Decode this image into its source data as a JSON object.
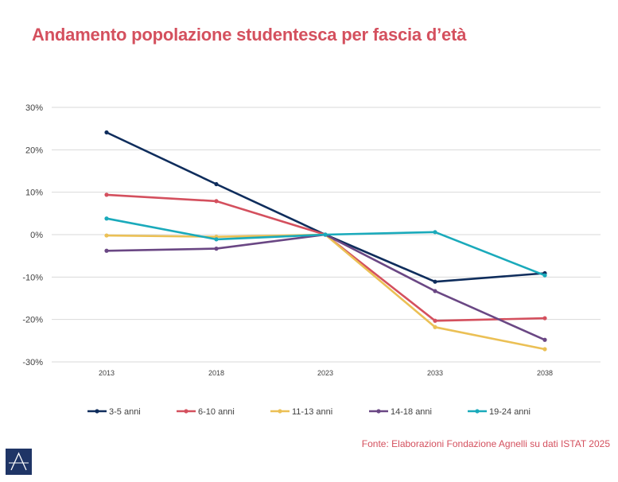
{
  "chart_data": {
    "type": "line",
    "title": "Andamento popolazione studentesca per fascia d’età",
    "categories": [
      "2013",
      "2018",
      "2023",
      "2033",
      "2038"
    ],
    "ylim": [
      -30,
      30
    ],
    "yticks": [
      30,
      20,
      10,
      0,
      -10,
      -20,
      -30
    ],
    "ytick_labels": [
      "30%",
      "20%",
      "10%",
      "0%",
      "-10%",
      "-20%",
      "-30%"
    ],
    "grid": true,
    "legend_position": "bottom",
    "series": [
      {
        "name": "3-5 anni",
        "color": "#0f2d5c",
        "values": [
          24.1,
          11.9,
          0.0,
          -11.1,
          -9.1
        ]
      },
      {
        "name": "6-10 anni",
        "color": "#d4505e",
        "values": [
          9.4,
          7.9,
          0.0,
          -20.3,
          -19.7
        ]
      },
      {
        "name": "11-13 anni",
        "color": "#ebc055",
        "values": [
          -0.2,
          -0.5,
          0.0,
          -21.8,
          -27.0
        ]
      },
      {
        "name": "14-18 anni",
        "color": "#6a4784",
        "values": [
          -3.8,
          -3.3,
          0.0,
          -13.3,
          -24.8
        ]
      },
      {
        "name": "19-24 anni",
        "color": "#1aaabb",
        "values": [
          3.8,
          -1.1,
          0.0,
          0.6,
          -9.6
        ]
      }
    ]
  },
  "source": "Fonte: Elaborazioni Fondazione Agnelli su dati ISTAT 2025",
  "logo_letter": "A"
}
